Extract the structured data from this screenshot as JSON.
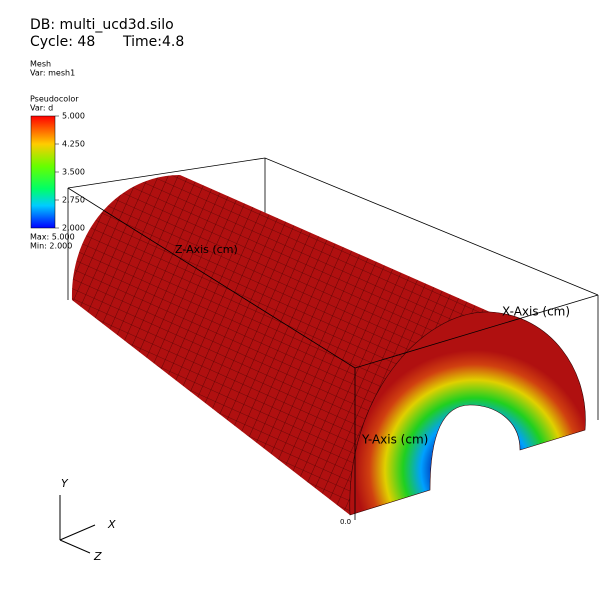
{
  "header": {
    "database": "DB: multi_ucd3d.silo",
    "cycle": "Cycle: 48",
    "time": "Time:4.8"
  },
  "mesh_plot": {
    "title": "Mesh",
    "var": "Var: mesh1"
  },
  "pseudocolor_plot": {
    "title": "Pseudocolor",
    "var": "Var: d",
    "legend_labels": [
      "5.000",
      "4.250",
      "3.500",
      "2.750",
      "2.000"
    ],
    "max": "Max:  5.000",
    "min": "Min:  2.000"
  },
  "axes": {
    "x_title": "X-Axis (cm)",
    "y_title": "Y-Axis (cm)",
    "z_title": "Z-Axis (cm)",
    "origin_label": "0.0"
  },
  "triad": {
    "y": "Y",
    "x": "X",
    "z": "Z"
  }
}
